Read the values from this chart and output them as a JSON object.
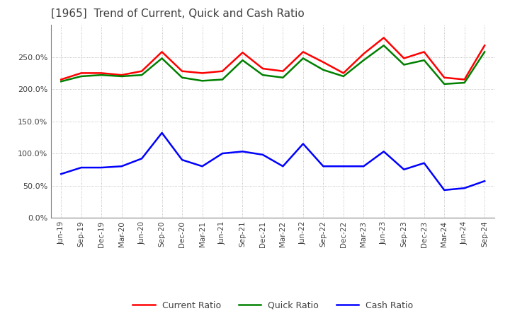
{
  "title": "[1965]  Trend of Current, Quick and Cash Ratio",
  "title_color": "#404040",
  "title_fontsize": 11,
  "background_color": "#ffffff",
  "plot_background_color": "#ffffff",
  "grid_color": "#b0b0b0",
  "x_labels": [
    "Jun-19",
    "Sep-19",
    "Dec-19",
    "Mar-20",
    "Jun-20",
    "Sep-20",
    "Dec-20",
    "Mar-21",
    "Jun-21",
    "Sep-21",
    "Dec-21",
    "Mar-22",
    "Jun-22",
    "Sep-22",
    "Dec-22",
    "Mar-23",
    "Jun-23",
    "Sep-23",
    "Dec-23",
    "Mar-24",
    "Jun-24",
    "Sep-24"
  ],
  "current_ratio": [
    215,
    225,
    225,
    222,
    228,
    258,
    228,
    225,
    228,
    257,
    232,
    228,
    258,
    242,
    225,
    255,
    280,
    248,
    258,
    218,
    215,
    268
  ],
  "quick_ratio": [
    212,
    220,
    222,
    220,
    222,
    248,
    218,
    213,
    215,
    245,
    222,
    218,
    248,
    230,
    220,
    245,
    268,
    238,
    245,
    208,
    210,
    258
  ],
  "cash_ratio": [
    68,
    78,
    78,
    80,
    92,
    132,
    90,
    80,
    100,
    103,
    98,
    80,
    115,
    80,
    80,
    80,
    103,
    75,
    85,
    43,
    46,
    57
  ],
  "ylim_min": 0,
  "ylim_max": 300,
  "yticks": [
    0,
    50,
    100,
    150,
    200,
    250
  ],
  "current_color": "#ff0000",
  "quick_color": "#008000",
  "cash_color": "#0000ff",
  "line_width": 1.8,
  "legend_labels": [
    "Current Ratio",
    "Quick Ratio",
    "Cash Ratio"
  ]
}
